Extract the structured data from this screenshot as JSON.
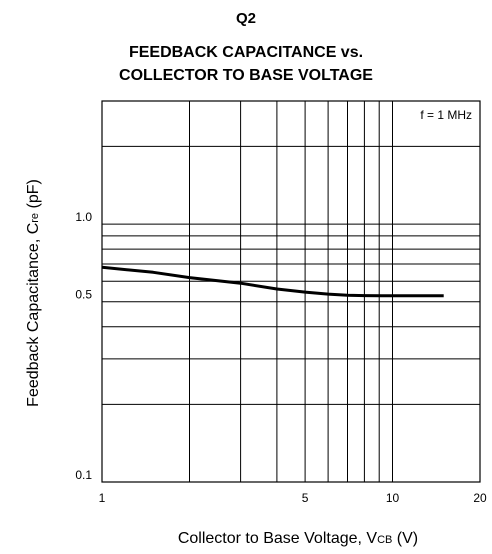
{
  "chart_data": {
    "type": "line",
    "heading": "Q2",
    "title_lines": [
      "FEEDBACK CAPACITANCE vs.",
      "COLLECTOR TO BASE VOLTAGE"
    ],
    "xlabel": {
      "main": "Collector to Base Voltage, V",
      "sub": "CB",
      "unit": " (V)"
    },
    "ylabel": {
      "main": "Feedback Capacitance, C",
      "sub": "re",
      "unit": " (pF)"
    },
    "x_scale": "log",
    "y_scale": "log",
    "xlim": [
      1,
      20
    ],
    "ylim": [
      0.1,
      3
    ],
    "x_ticks": [
      {
        "value": 1,
        "label": "1"
      },
      {
        "value": 5,
        "label": "5"
      },
      {
        "value": 10,
        "label": "10"
      },
      {
        "value": 20,
        "label": "20"
      }
    ],
    "y_ticks": [
      {
        "value": 0.1,
        "label": "0.1"
      },
      {
        "value": 0.5,
        "label": "0.5"
      },
      {
        "value": 1.0,
        "label": "1.0"
      }
    ],
    "x_gridlines": [
      1,
      2,
      3,
      4,
      5,
      6,
      7,
      8,
      9,
      10,
      20
    ],
    "y_gridlines": [
      0.1,
      0.2,
      0.3,
      0.4,
      0.5,
      0.6,
      0.7,
      0.8,
      0.9,
      1.0,
      2.0,
      3.0
    ],
    "grid": true,
    "annotation": "f = 1 MHz",
    "series": [
      {
        "x": [
          1,
          1.5,
          2,
          3,
          4,
          5,
          6,
          7,
          8,
          10,
          12,
          15
        ],
        "y": [
          0.68,
          0.65,
          0.62,
          0.59,
          0.56,
          0.545,
          0.535,
          0.53,
          0.528,
          0.527,
          0.527,
          0.527
        ]
      }
    ]
  }
}
